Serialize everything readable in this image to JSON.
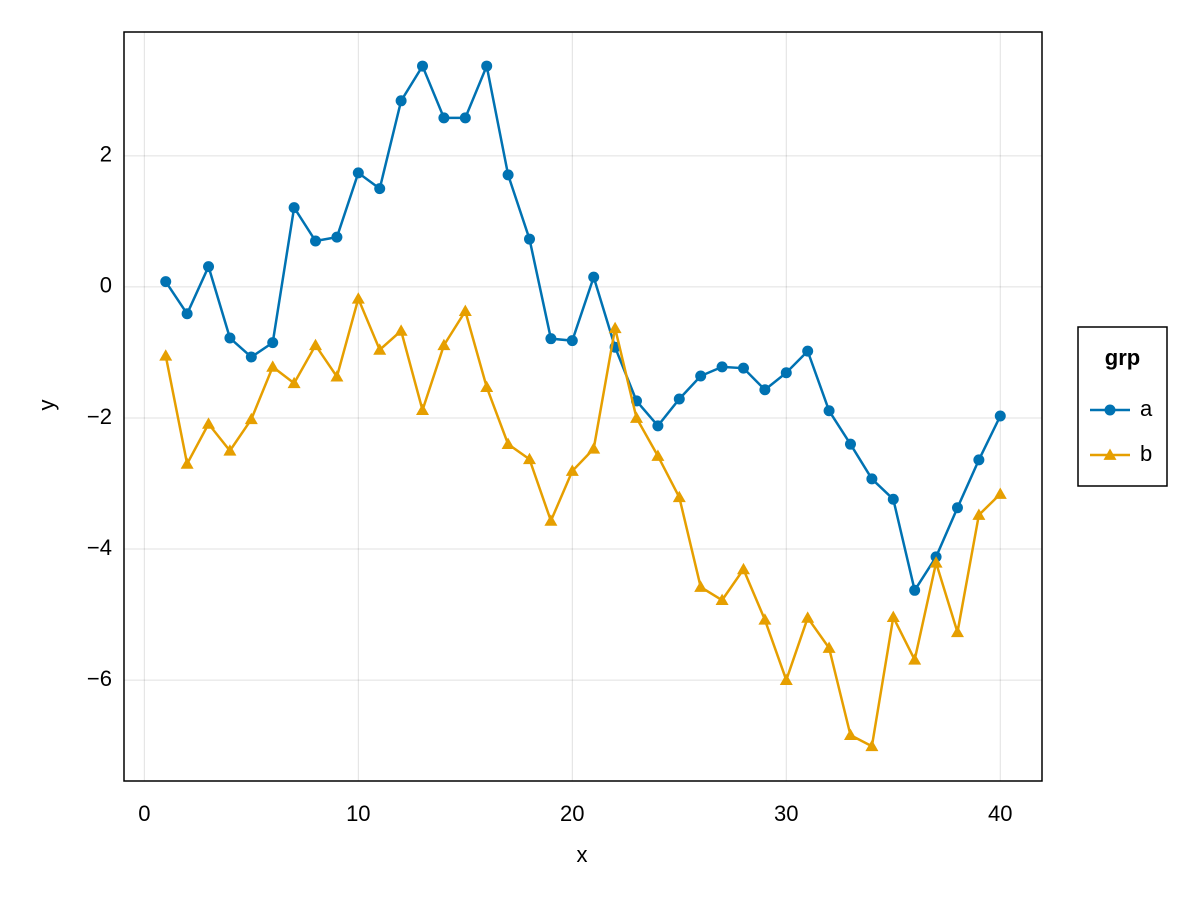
{
  "chart_data": {
    "type": "line",
    "x_label": "x",
    "y_label": "y",
    "x": [
      1,
      2,
      3,
      4,
      5,
      6,
      7,
      8,
      9,
      10,
      11,
      12,
      13,
      14,
      15,
      16,
      17,
      18,
      19,
      20,
      21,
      22,
      23,
      24,
      25,
      26,
      27,
      28,
      29,
      30,
      31,
      32,
      33,
      34,
      35,
      36,
      37,
      38,
      39,
      40
    ],
    "series": [
      {
        "name": "a",
        "color": "#0072b2",
        "marker": "circle",
        "values": [
          0.08,
          -0.41,
          0.31,
          -0.78,
          -1.07,
          -0.85,
          1.21,
          0.7,
          0.76,
          1.74,
          1.5,
          2.84,
          3.37,
          2.58,
          2.58,
          3.37,
          1.71,
          0.73,
          -0.79,
          -0.82,
          0.15,
          -0.92,
          -1.74,
          -2.12,
          -1.71,
          -1.36,
          -1.22,
          -1.24,
          -1.57,
          -1.31,
          -0.98,
          -1.89,
          -2.4,
          -2.93,
          -3.24,
          -4.63,
          -4.12,
          -3.37,
          -2.64,
          -1.97
        ]
      },
      {
        "name": "b",
        "color": "#e69f00",
        "marker": "triangle",
        "values": [
          -1.05,
          -2.7,
          -2.09,
          -2.5,
          -2.02,
          -1.22,
          -1.47,
          -0.89,
          -1.37,
          -0.18,
          -0.96,
          -0.67,
          -1.88,
          -0.89,
          -0.37,
          -1.53,
          -2.4,
          -2.63,
          -3.57,
          -2.81,
          -2.47,
          -0.63,
          -2.0,
          -2.58,
          -3.21,
          -4.58,
          -4.78,
          -4.31,
          -5.08,
          -6.0,
          -5.05,
          -5.51,
          -6.84,
          -7.01,
          -5.04,
          -5.69,
          -4.21,
          -5.27,
          -3.48,
          -3.16
        ]
      }
    ],
    "xlim": [
      -0.95,
      41.95
    ],
    "ylim": [
      -7.54,
      3.89
    ],
    "xticks": [
      0,
      10,
      20,
      30,
      40
    ],
    "yticks": [
      {
        "value": -6,
        "label": "−6"
      },
      {
        "value": -4,
        "label": "−4"
      },
      {
        "value": -2,
        "label": "−2"
      },
      0,
      2
    ],
    "grid": true,
    "legend": {
      "title": "grp",
      "position": "right"
    }
  }
}
